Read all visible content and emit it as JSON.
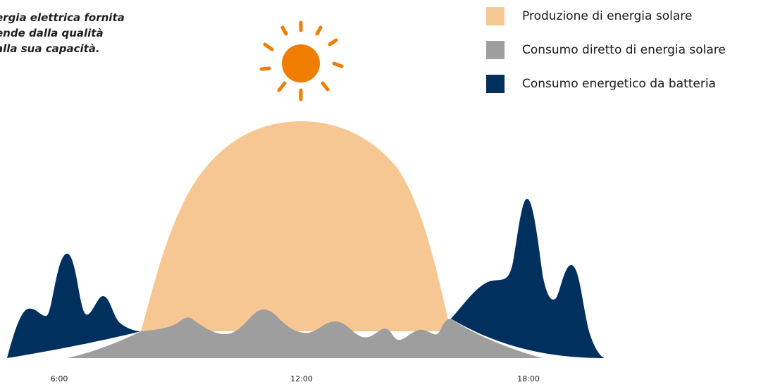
{
  "note": {
    "lines": [
      "ergia elettrica fornita",
      "ende dalla qualità",
      "alla sua capacità."
    ]
  },
  "icons": {
    "sun": "sun-icon"
  },
  "colors": {
    "solar_production": "#F7C793",
    "direct_consumption": "#9E9E9E",
    "battery_consumption": "#00305E",
    "sun": "#EF7D00"
  },
  "chart_data": {
    "type": "area",
    "x_ticks": [
      "6:00",
      "12:00",
      "18:00"
    ],
    "series": [
      {
        "name": "Produzione di energia solare",
        "color": "#F7C793",
        "x": [
          8.0,
          9.0,
          10.0,
          11.0,
          12.0,
          13.0,
          14.0,
          15.0,
          16.0
        ],
        "values": [
          0.08,
          0.45,
          0.78,
          0.95,
          1.0,
          0.95,
          0.78,
          0.45,
          0.08
        ]
      },
      {
        "name": "Consumo diretto di energia solare",
        "color": "#9E9E9E",
        "x": [
          6.0,
          7.0,
          8.0,
          9.0,
          10.0,
          11.0,
          11.5,
          12.0,
          13.0,
          14.0,
          14.5,
          15.0,
          16.0,
          17.0,
          18.0
        ],
        "values": [
          0.0,
          0.05,
          0.1,
          0.15,
          0.1,
          0.12,
          0.2,
          0.12,
          0.13,
          0.1,
          0.13,
          0.08,
          0.1,
          0.05,
          0.0
        ]
      },
      {
        "name": "Consumo energetico da batteria",
        "color": "#00305E",
        "x": [
          5.5,
          6.0,
          6.5,
          7.0,
          7.5,
          8.0,
          16.0,
          17.0,
          17.5,
          18.0,
          18.5,
          19.0
        ],
        "values": [
          0.0,
          0.2,
          0.45,
          0.2,
          0.05,
          0.08,
          0.08,
          0.3,
          0.3,
          0.7,
          0.35,
          0.0
        ]
      }
    ]
  },
  "legend": {
    "items": [
      {
        "label": "Produzione di energia solare",
        "color": "#F7C793"
      },
      {
        "label": "Consumo diretto di energia solare",
        "color": "#9E9E9E"
      },
      {
        "label": "Consumo energetico da batteria",
        "color": "#00305E"
      }
    ]
  }
}
